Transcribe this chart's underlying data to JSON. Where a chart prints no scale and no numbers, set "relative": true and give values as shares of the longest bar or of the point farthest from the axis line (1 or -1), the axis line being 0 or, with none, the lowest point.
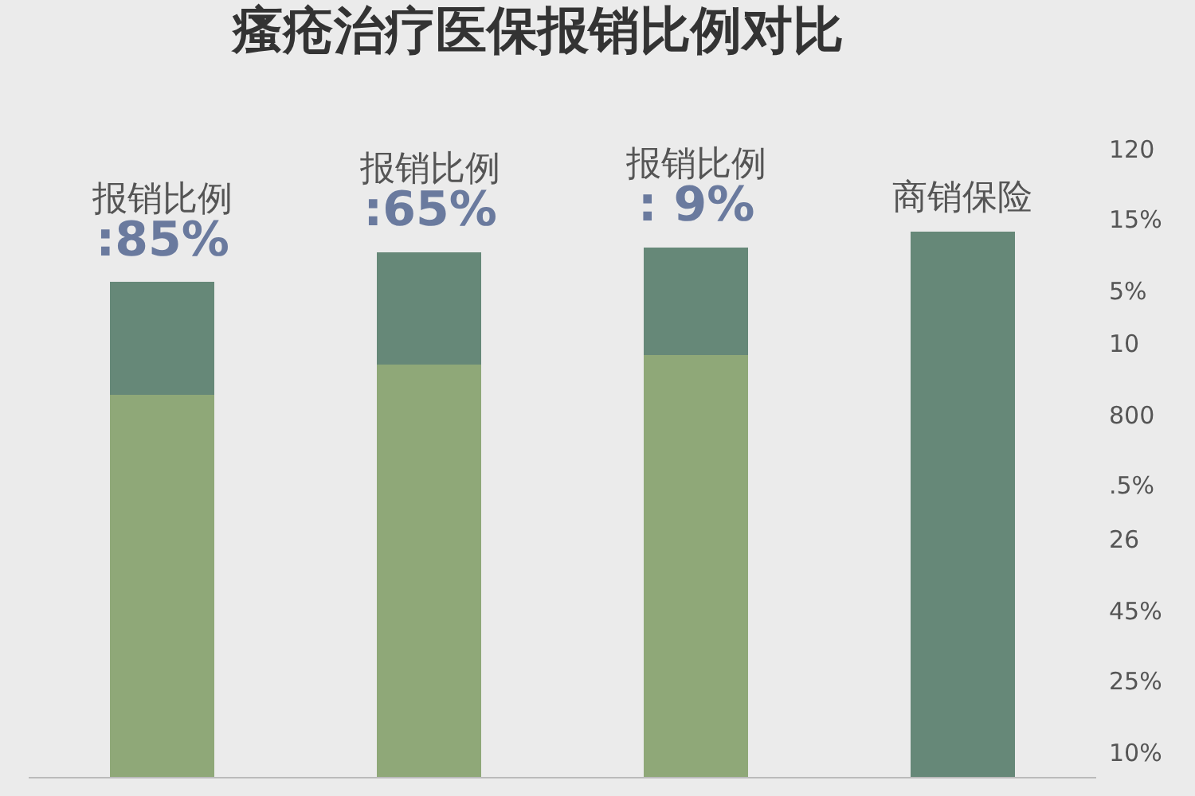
{
  "chart_data": {
    "type": "bar",
    "title": "瘙疮治疗医保报销比例对比",
    "relative": true,
    "stacked": true,
    "categories": [
      null,
      null,
      null,
      null
    ],
    "series": [
      {
        "color": "#8fa878",
        "values": [
          0.7,
          0.756,
          0.773,
          null
        ]
      },
      {
        "color": "#668878",
        "values": [
          0.207,
          0.206,
          0.198,
          1.0
        ]
      }
    ],
    "annotations": [
      "报销比例\n:85%",
      "报销比例\n:65%",
      "报销比例\n: 9%",
      "商销保险",
      "120",
      "15%",
      "5%",
      "10",
      "800",
      ".5%",
      "26",
      "45%",
      "25%",
      "10%"
    ]
  }
}
